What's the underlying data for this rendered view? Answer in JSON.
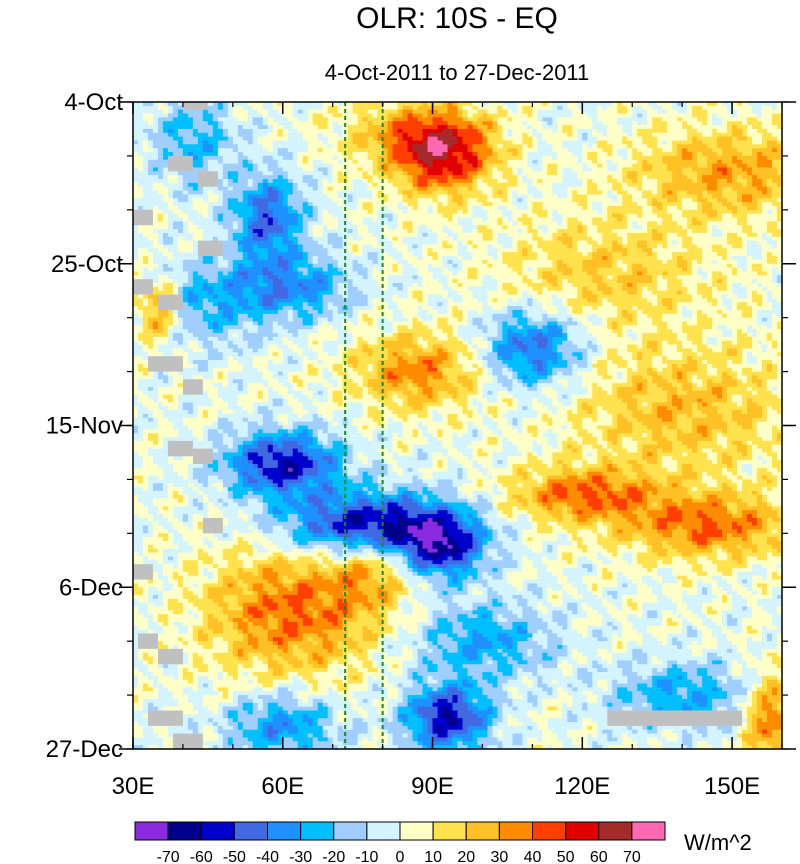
{
  "chart_data": {
    "type": "heatmap",
    "title": "OLR: 10S - EQ",
    "subtitle": "4-Oct-2011 to 27-Dec-2011",
    "units_label": "W/m^2",
    "xlim": [
      30,
      160
    ],
    "xticks": [
      {
        "value": 30,
        "label": "30E"
      },
      {
        "value": 60,
        "label": "60E"
      },
      {
        "value": 90,
        "label": "90E"
      },
      {
        "value": 120,
        "label": "120E"
      },
      {
        "value": 150,
        "label": "150E"
      }
    ],
    "ylim_days": [
      0,
      84
    ],
    "yticks": [
      {
        "day": 0,
        "label": "4-Oct"
      },
      {
        "day": 21,
        "label": "25-Oct"
      },
      {
        "day": 42,
        "label": "15-Nov"
      },
      {
        "day": 63,
        "label": "6-Dec"
      },
      {
        "day": 84,
        "label": "27-Dec"
      }
    ],
    "reference_lines_lon": [
      72.5,
      80
    ],
    "levels": [
      -70,
      -60,
      -50,
      -40,
      -30,
      -20,
      -10,
      0,
      10,
      20,
      30,
      40,
      50,
      60,
      70
    ],
    "level_labels": [
      "-70",
      "-60",
      "-50",
      "-40",
      "-30",
      "-20",
      "-10",
      "0",
      "10",
      "20",
      "30",
      "40",
      "50",
      "60",
      "70"
    ],
    "colors": [
      "#8A2BE2",
      "#00008B",
      "#0000CD",
      "#4169E1",
      "#1E90FF",
      "#00BFFF",
      "#A0CFFF",
      "#D4F4FF",
      "#FFFFC8",
      "#FFE24D",
      "#FFC125",
      "#FF8C00",
      "#FF3F00",
      "#E00000",
      "#A52A2A",
      "#FF69B4"
    ],
    "missing_color": "#c0c0c0",
    "anomaly_features": [
      {
        "lon": 92,
        "day": 7,
        "amp": 55,
        "slon": 7,
        "sday": 3.5
      },
      {
        "lon": 86,
        "day": 4,
        "amp": 25,
        "slon": 10,
        "sday": 3
      },
      {
        "lon": 150,
        "day": 9,
        "amp": 30,
        "slon": 14,
        "sday": 4
      },
      {
        "lon": 57,
        "day": 15,
        "amp": -45,
        "slon": 5,
        "sday": 4
      },
      {
        "lon": 62,
        "day": 24,
        "amp": -35,
        "slon": 8,
        "sday": 3
      },
      {
        "lon": 45,
        "day": 26,
        "amp": -25,
        "slon": 8,
        "sday": 4
      },
      {
        "lon": 110,
        "day": 32,
        "amp": -45,
        "slon": 7,
        "sday": 3.5
      },
      {
        "lon": 87,
        "day": 35,
        "amp": 35,
        "slon": 9,
        "sday": 3.5
      },
      {
        "lon": 35,
        "day": 27,
        "amp": 35,
        "slon": 3,
        "sday": 3
      },
      {
        "lon": 60,
        "day": 47,
        "amp": -60,
        "slon": 8,
        "sday": 3
      },
      {
        "lon": 78,
        "day": 55,
        "amp": -70,
        "slon": 12,
        "sday": 3
      },
      {
        "lon": 92,
        "day": 58,
        "amp": -50,
        "slon": 6,
        "sday": 3
      },
      {
        "lon": 120,
        "day": 51,
        "amp": 40,
        "slon": 10,
        "sday": 2.5
      },
      {
        "lon": 145,
        "day": 55,
        "amp": 40,
        "slon": 12,
        "sday": 3
      },
      {
        "lon": 62,
        "day": 66,
        "amp": 40,
        "slon": 12,
        "sday": 6
      },
      {
        "lon": 78,
        "day": 60,
        "amp": 25,
        "slon": 6,
        "sday": 4
      },
      {
        "lon": 100,
        "day": 70,
        "amp": -30,
        "slon": 10,
        "sday": 3.5
      },
      {
        "lon": 93,
        "day": 80,
        "amp": -60,
        "slon": 6,
        "sday": 3
      },
      {
        "lon": 60,
        "day": 81,
        "amp": -35,
        "slon": 8,
        "sday": 3
      },
      {
        "lon": 140,
        "day": 77,
        "amp": -30,
        "slon": 10,
        "sday": 3
      },
      {
        "lon": 158,
        "day": 80,
        "amp": 40,
        "slon": 4,
        "sday": 4
      },
      {
        "lon": 140,
        "day": 40,
        "amp": 25,
        "slon": 15,
        "sday": 6
      },
      {
        "lon": 125,
        "day": 22,
        "amp": 20,
        "slon": 15,
        "sday": 5
      },
      {
        "lon": 42,
        "day": 5,
        "amp": -25,
        "slon": 6,
        "sday": 4
      }
    ],
    "missing_patches": [
      {
        "lon0": 40,
        "lon1": 45,
        "day0": 0,
        "day1": 1
      },
      {
        "lon0": 37,
        "lon1": 42,
        "day0": 7,
        "day1": 9
      },
      {
        "lon0": 43,
        "lon1": 47,
        "day0": 9,
        "day1": 11
      },
      {
        "lon0": 30,
        "lon1": 34,
        "day0": 14,
        "day1": 16
      },
      {
        "lon0": 43,
        "lon1": 48,
        "day0": 18,
        "day1": 20
      },
      {
        "lon0": 30,
        "lon1": 34,
        "day0": 23,
        "day1": 25
      },
      {
        "lon0": 35,
        "lon1": 40,
        "day0": 25,
        "day1": 27
      },
      {
        "lon0": 33,
        "lon1": 40,
        "day0": 33,
        "day1": 35
      },
      {
        "lon0": 40,
        "lon1": 44,
        "day0": 36,
        "day1": 38
      },
      {
        "lon0": 37,
        "lon1": 42,
        "day0": 44,
        "day1": 46
      },
      {
        "lon0": 42,
        "lon1": 46,
        "day0": 45,
        "day1": 47
      },
      {
        "lon0": 44,
        "lon1": 48,
        "day0": 54,
        "day1": 56
      },
      {
        "lon0": 30,
        "lon1": 34,
        "day0": 60,
        "day1": 62
      },
      {
        "lon0": 31,
        "lon1": 35,
        "day0": 69,
        "day1": 71
      },
      {
        "lon0": 35,
        "lon1": 40,
        "day0": 71,
        "day1": 73
      },
      {
        "lon0": 33,
        "lon1": 40,
        "day0": 79,
        "day1": 81
      },
      {
        "lon0": 38,
        "lon1": 44,
        "day0": 82,
        "day1": 84
      },
      {
        "lon0": 125,
        "lon1": 152,
        "day0": 79,
        "day1": 81
      }
    ]
  }
}
